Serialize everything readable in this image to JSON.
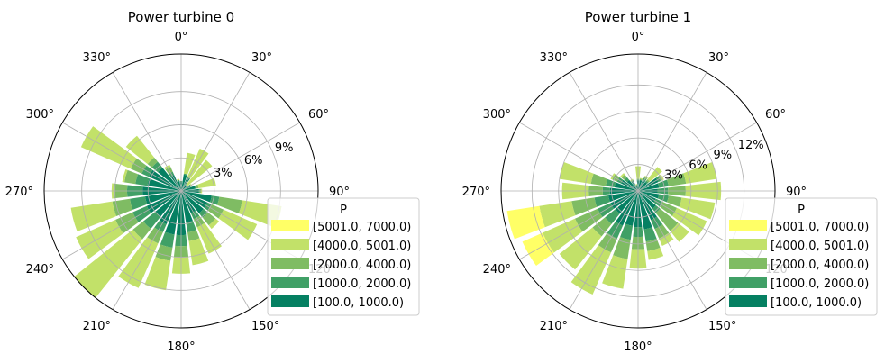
{
  "chart_data": [
    {
      "type": "windrose",
      "title": "Power turbine 0",
      "direction_labels": [
        "0°",
        "30°",
        "60°",
        "90°",
        "120°",
        "150°",
        "180°",
        "210°",
        "240°",
        "270°",
        "300°",
        "330°"
      ],
      "radial_ticks": [
        {
          "value": 3,
          "label": "3%"
        },
        {
          "value": 6,
          "label": "6%"
        },
        {
          "value": 9,
          "label": "9%"
        }
      ],
      "rmax": 12.4,
      "legend": {
        "title": "P",
        "entries": [
          "[5001.0, 7000.0)",
          "[4000.0, 5001.0)",
          "[2000.0, 4000.0)",
          "[1000.0, 2000.0)",
          "[100.0, 1000.0)"
        ],
        "colors": [
          "#ffff66",
          "#c2e169",
          "#7fbc63",
          "#40a066",
          "#058062"
        ]
      },
      "bins": [
        "[100.0, 1000.0)",
        "[1000.0, 2000.0)",
        "[2000.0, 4000.0)",
        "[4000.0, 5001.0)",
        "[5001.0, 7000.0)"
      ],
      "directions_deg": [
        0,
        15,
        30,
        45,
        60,
        75,
        90,
        105,
        120,
        135,
        150,
        165,
        180,
        195,
        210,
        225,
        240,
        255,
        270,
        285,
        300,
        315,
        330,
        345
      ],
      "cumulative_percent": [
        [
          0.8,
          0.9,
          0.9,
          0.9,
          0.9
        ],
        [
          1.5,
          1.6,
          1.6,
          3.5,
          3.5
        ],
        [
          1.3,
          1.4,
          1.4,
          4.2,
          4.2
        ],
        [
          0.6,
          0.7,
          0.7,
          3.6,
          3.6
        ],
        [
          0.9,
          1.0,
          1.0,
          1.1,
          1.1
        ],
        [
          1.3,
          1.4,
          1.6,
          3.2,
          3.2
        ],
        [
          1.6,
          1.7,
          1.8,
          1.9,
          1.9
        ],
        [
          2.8,
          3.5,
          5.6,
          9.2,
          9.2
        ],
        [
          2.6,
          3.0,
          4.2,
          7.5,
          7.5
        ],
        [
          2.6,
          3.1,
          4.0,
          4.4,
          4.4
        ],
        [
          2.2,
          2.8,
          3.6,
          6.2,
          6.2
        ],
        [
          2.9,
          3.8,
          4.6,
          6.8,
          6.8
        ],
        [
          4.0,
          5.0,
          6.0,
          7.5,
          7.5
        ],
        [
          4.0,
          5.2,
          6.4,
          9.1,
          9.1
        ],
        [
          3.3,
          4.1,
          5.2,
          9.6,
          9.6
        ],
        [
          3.0,
          4.4,
          5.6,
          12.4,
          12.4
        ],
        [
          3.4,
          4.8,
          6.5,
          10.4,
          10.4
        ],
        [
          3.3,
          4.7,
          6.3,
          10.1,
          10.1
        ],
        [
          3.5,
          4.9,
          6.1,
          6.3,
          6.3
        ],
        [
          3.1,
          4.2,
          5.2,
          5.4,
          5.4
        ],
        [
          3.2,
          3.9,
          5.0,
          9.9,
          9.9
        ],
        [
          2.7,
          3.4,
          3.9,
          6.4,
          6.4
        ],
        [
          1.6,
          1.9,
          2.4,
          2.6,
          2.6
        ],
        [
          0.9,
          1.0,
          1.0,
          1.1,
          1.1
        ]
      ]
    },
    {
      "type": "windrose",
      "title": "Power turbine 1",
      "direction_labels": [
        "0°",
        "30°",
        "60°",
        "90°",
        "120°",
        "150°",
        "180°",
        "210°",
        "240°",
        "270°",
        "300°",
        "330°"
      ],
      "radial_ticks": [
        {
          "value": 3,
          "label": "3%"
        },
        {
          "value": 6,
          "label": "6%"
        },
        {
          "value": 9,
          "label": "9%"
        },
        {
          "value": 12,
          "label": "12%"
        }
      ],
      "rmax": 15.5,
      "legend": {
        "title": "P",
        "entries": [
          "[5001.0, 7000.0)",
          "[4000.0, 5001.0)",
          "[2000.0, 4000.0)",
          "[1000.0, 2000.0)",
          "[100.0, 1000.0)"
        ],
        "colors": [
          "#ffff66",
          "#c2e169",
          "#7fbc63",
          "#40a066",
          "#058062"
        ]
      },
      "bins": [
        "[100.0, 1000.0)",
        "[1000.0, 2000.0)",
        "[2000.0, 4000.0)",
        "[4000.0, 5001.0)",
        "[5001.0, 7000.0)"
      ],
      "directions_deg": [
        0,
        15,
        30,
        45,
        60,
        75,
        90,
        105,
        120,
        135,
        150,
        165,
        180,
        195,
        210,
        225,
        240,
        255,
        270,
        285,
        300,
        315,
        330,
        345
      ],
      "cumulative_percent": [
        [
          1.2,
          1.3,
          1.4,
          2.8,
          2.8
        ],
        [
          1.2,
          1.3,
          1.4,
          1.5,
          1.5
        ],
        [
          1.4,
          1.6,
          1.8,
          1.9,
          1.9
        ],
        [
          1.3,
          1.5,
          1.7,
          3.5,
          3.5
        ],
        [
          2.5,
          2.8,
          3.0,
          3.2,
          3.2
        ],
        [
          2.4,
          3.5,
          5.5,
          9.0,
          9.0
        ],
        [
          2.2,
          3.4,
          5.4,
          9.4,
          9.4
        ],
        [
          2.4,
          3.5,
          5.0,
          8.8,
          8.8
        ],
        [
          2.2,
          3.0,
          4.8,
          8.5,
          8.5
        ],
        [
          2.6,
          3.2,
          5.8,
          7.4,
          7.4
        ],
        [
          3.6,
          4.7,
          5.9,
          6.8,
          6.8
        ],
        [
          4.4,
          5.8,
          6.9,
          7.9,
          7.9
        ],
        [
          4.1,
          5.2,
          6.6,
          8.8,
          8.8
        ],
        [
          4.0,
          5.6,
          7.8,
          11.2,
          11.2
        ],
        [
          4.3,
          5.9,
          7.6,
          12.8,
          12.8
        ],
        [
          3.3,
          4.8,
          6.6,
          11.4,
          11.4
        ],
        [
          3.4,
          5.0,
          7.8,
          11.8,
          14.3
        ],
        [
          3.4,
          5.0,
          7.6,
          11.3,
          15.0
        ],
        [
          3.2,
          4.0,
          5.6,
          8.6,
          8.6
        ],
        [
          2.7,
          3.7,
          5.4,
          9.0,
          9.0
        ],
        [
          2.1,
          2.6,
          3.2,
          3.4,
          3.4
        ],
        [
          1.6,
          2.0,
          2.4,
          2.6,
          2.6
        ],
        [
          1.2,
          1.3,
          1.4,
          1.5,
          1.5
        ],
        [
          0.6,
          0.7,
          0.7,
          0.8,
          0.8
        ]
      ]
    }
  ]
}
